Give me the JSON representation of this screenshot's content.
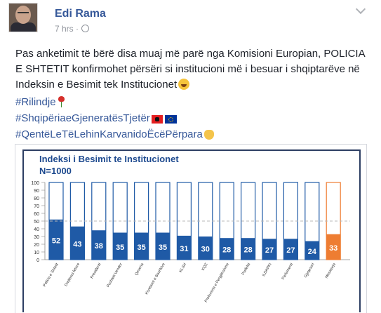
{
  "post": {
    "author": "Edi Rama",
    "time": "7 hrs ·",
    "text": "Pas anketimit të bërë disa muaj më parë nga Komisioni Europian, POLICIA E SHTETIT konfirmohet përsëri si institucioni më i besuar i shqiptarëve në Indeksin e Besimit tek Institucionet",
    "hashtags": [
      "#Rilindje",
      "#ShqipëriaeGjeneratësTjetër",
      "#QentëLeTëLehinKarvanidoËcëPërpara"
    ],
    "icons": {
      "avatar": "profile-photo",
      "privacy": "globe-icon",
      "menu": "chevron-down-icon",
      "text_emoji": "laughing-emoji",
      "tag1_emoji": "rose-emoji",
      "tag2_emojis": [
        "albania-flag",
        "eu-flag"
      ],
      "tag3_emoji": "pointing-hand-emoji"
    }
  },
  "chart_data": {
    "type": "bar",
    "title": "Indeksi i Besimit te Institucionet",
    "subtitle": "N=1000",
    "categories": [
      "Policia e Shtetit",
      "Drejtesoi fetare",
      "Presidenti",
      "Pushteti Vendor",
      "Qeveria",
      "Kryetaret e Bashkive",
      "KLSH",
      "KQZ",
      "Prokuroria e Pergjithshme",
      "Prefekti",
      "ILDKPKI",
      "Parlamenti",
      "Gjyqesori",
      "Mesatarja"
    ],
    "values": [
      52,
      43,
      38,
      35,
      35,
      35,
      31,
      30,
      28,
      28,
      27,
      27,
      24,
      33
    ],
    "ylim": [
      0,
      100
    ],
    "yticks": [
      0,
      10,
      20,
      30,
      40,
      50,
      60,
      70,
      80,
      90,
      100
    ],
    "reference_line": 50,
    "colors": {
      "bar": "#1f5aa6",
      "average": "#ee7d32",
      "frame": "#2c3e63",
      "title": "#1e4a8f"
    }
  }
}
